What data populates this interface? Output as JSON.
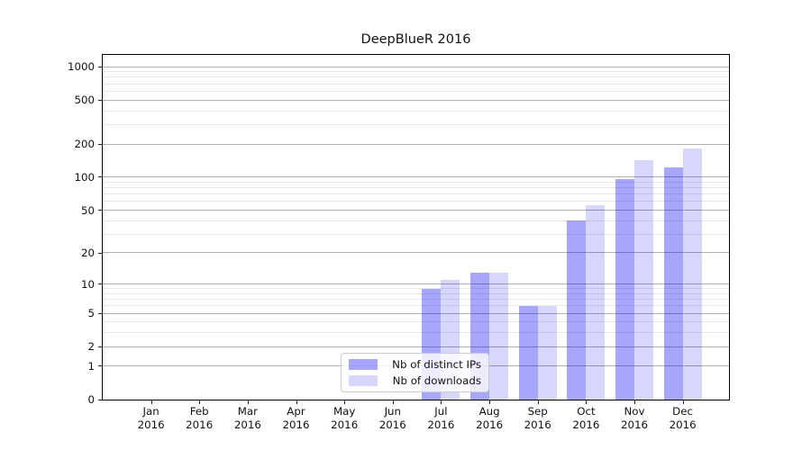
{
  "chart_data": {
    "type": "bar",
    "title": "DeepBlueR 2016",
    "xlabel": "",
    "ylabel": "",
    "categories": [
      "Jan 2016",
      "Feb 2016",
      "Mar 2016",
      "Apr 2016",
      "May 2016",
      "Jun 2016",
      "Jul 2016",
      "Aug 2016",
      "Sep 2016",
      "Oct 2016",
      "Nov 2016",
      "Dec 2016"
    ],
    "series": [
      {
        "name": "Nb of distinct IPs",
        "color": "rgba(0,0,240,0.35)",
        "values": [
          0,
          0,
          0,
          0,
          0,
          0,
          9,
          13,
          6,
          40,
          96,
          123
        ]
      },
      {
        "name": "Nb of downloads",
        "color": "rgba(0,0,240,0.155)",
        "values": [
          0,
          0,
          0,
          0,
          0,
          0,
          11,
          13,
          6,
          56,
          142,
          182
        ]
      }
    ],
    "yscale": "log1p",
    "y_major_ticks": [
      0,
      1,
      2,
      5,
      10,
      20,
      50,
      100,
      200,
      500,
      1000
    ],
    "y_minor_ticks": [
      3,
      4,
      6,
      7,
      8,
      9,
      30,
      40,
      60,
      70,
      80,
      90,
      300,
      400,
      600,
      700,
      800,
      900
    ],
    "ylim": [
      0,
      1325
    ],
    "grid": {
      "major_color": "#b0b0b0",
      "minor_color": "#e7e7e7",
      "visible": true
    },
    "legend": {
      "position": "lower center",
      "entries": [
        "Nb of distinct IPs",
        "Nb of downloads"
      ]
    },
    "accent_colors": {
      "bar_dark": "#aaaaf9",
      "bar_light": "#d8d8fa",
      "axis": "#000000",
      "text": "#111111"
    }
  }
}
